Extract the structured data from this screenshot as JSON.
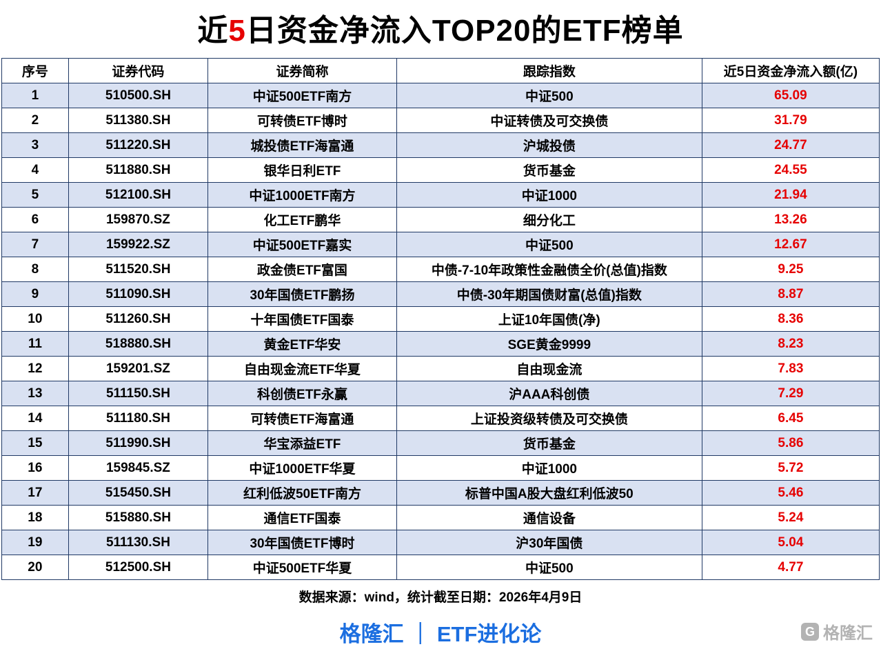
{
  "title": {
    "prefix": "近",
    "highlight": "5",
    "suffix": "日资金净流入TOP20的ETF榜单"
  },
  "chart_data": {
    "type": "table",
    "title": "近5日资金净流入TOP20的ETF榜单",
    "columns": [
      "序号",
      "证券代码",
      "证券简称",
      "跟踪指数",
      "近5日资金净流入额(亿)"
    ],
    "rows": [
      [
        "1",
        "510500.SH",
        "中证500ETF南方",
        "中证500",
        "65.09"
      ],
      [
        "2",
        "511380.SH",
        "可转债ETF博时",
        "中证转债及可交换债",
        "31.79"
      ],
      [
        "3",
        "511220.SH",
        "城投债ETF海富通",
        "沪城投债",
        "24.77"
      ],
      [
        "4",
        "511880.SH",
        "银华日利ETF",
        "货币基金",
        "24.55"
      ],
      [
        "5",
        "512100.SH",
        "中证1000ETF南方",
        "中证1000",
        "21.94"
      ],
      [
        "6",
        "159870.SZ",
        "化工ETF鹏华",
        "细分化工",
        "13.26"
      ],
      [
        "7",
        "159922.SZ",
        "中证500ETF嘉实",
        "中证500",
        "12.67"
      ],
      [
        "8",
        "511520.SH",
        "政金债ETF富国",
        "中债-7-10年政策性金融债全价(总值)指数",
        "9.25"
      ],
      [
        "9",
        "511090.SH",
        "30年国债ETF鹏扬",
        "中债-30年期国债财富(总值)指数",
        "8.87"
      ],
      [
        "10",
        "511260.SH",
        "十年国债ETF国泰",
        "上证10年国债(净)",
        "8.36"
      ],
      [
        "11",
        "518880.SH",
        "黄金ETF华安",
        "SGE黄金9999",
        "8.23"
      ],
      [
        "12",
        "159201.SZ",
        "自由现金流ETF华夏",
        "自由现金流",
        "7.83"
      ],
      [
        "13",
        "511150.SH",
        "科创债ETF永赢",
        "沪AAA科创债",
        "7.29"
      ],
      [
        "14",
        "511180.SH",
        "可转债ETF海富通",
        "上证投资级转债及可交换债",
        "6.45"
      ],
      [
        "15",
        "511990.SH",
        "华宝添益ETF",
        "货币基金",
        "5.86"
      ],
      [
        "16",
        "159845.SZ",
        "中证1000ETF华夏",
        "中证1000",
        "5.72"
      ],
      [
        "17",
        "515450.SH",
        "红利低波50ETF南方",
        "标普中国A股大盘红利低波50",
        "5.46"
      ],
      [
        "18",
        "515880.SH",
        "通信ETF国泰",
        "通信设备",
        "5.24"
      ],
      [
        "19",
        "511130.SH",
        "30年国债ETF博时",
        "沪30年国债",
        "5.04"
      ],
      [
        "20",
        "512500.SH",
        "中证500ETF华夏",
        "中证500",
        "4.77"
      ]
    ]
  },
  "footer": {
    "source": "数据来源：wind，统计截至日期：2026年4月9日",
    "brand": "格隆汇 ｜ ETF进化论"
  },
  "watermark": {
    "icon_letter": "G",
    "text": "格隆汇"
  },
  "colors": {
    "highlight_red": "#e60000",
    "value_red": "#e60000",
    "row_alt_blue": "#d9e1f2",
    "table_border": "#1f3864",
    "brand_blue": "#1b6ee0",
    "watermark_gray": "#ababab"
  }
}
